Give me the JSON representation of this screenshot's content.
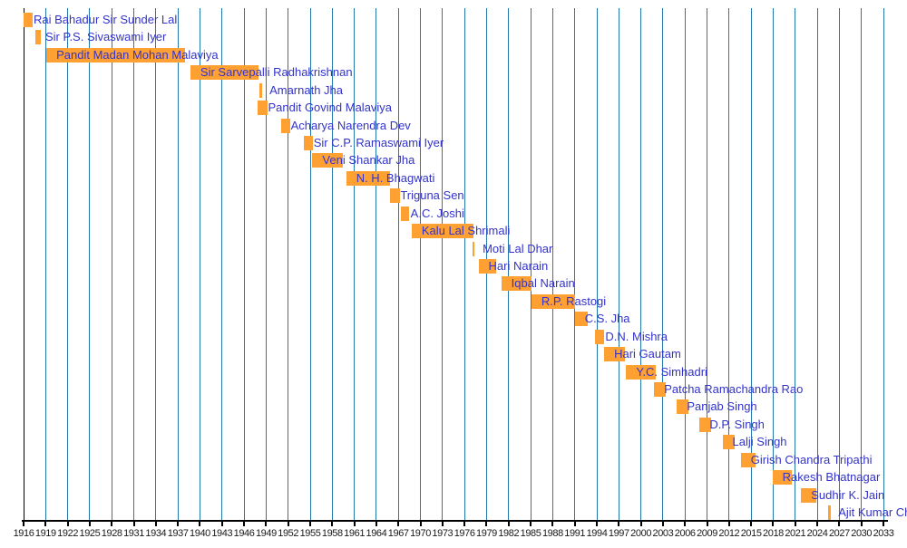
{
  "chart_data": {
    "type": "bar",
    "variant": "timeline-gantt",
    "title": "",
    "xlabel": "",
    "ylabel": "",
    "x_axis": {
      "min_year": 1916,
      "max_year": 2033,
      "tick_step_years": 3,
      "tick_labels": [
        "1916",
        "1919",
        "1922",
        "1925",
        "1928",
        "1931",
        "1934",
        "1937",
        "1940",
        "1943",
        "1946",
        "1949",
        "1952",
        "1955",
        "1958",
        "1961",
        "1964",
        "1967",
        "1970",
        "1973",
        "1976",
        "1979",
        "1982",
        "1985",
        "1988",
        "1991",
        "1994",
        "1997",
        "2000",
        "2003",
        "2006",
        "2009",
        "2012",
        "2015",
        "2018",
        "2021",
        "2024",
        "2027",
        "2030",
        "2033"
      ]
    },
    "grid": "vertical-lines-every-tick",
    "legend": "none",
    "bars": [
      {
        "label": "Rai Bahadur Sir Sunder Lal",
        "start": 1916.0,
        "end": 1917.2
      },
      {
        "label": "Sir P.S. Sivaswami Iyer",
        "start": 1917.6,
        "end": 1918.4
      },
      {
        "label": "Pandit Madan Mohan Malaviya",
        "start": 1919.1,
        "end": 1938.0
      },
      {
        "label": "Sir Sarvepalli Radhakrishnan",
        "start": 1938.7,
        "end": 1948.0
      },
      {
        "label": "Amarnath Jha",
        "start": 1948.1,
        "end": 1948.4
      },
      {
        "label": "Pandit Govind Malaviya",
        "start": 1947.9,
        "end": 1949.2
      },
      {
        "label": "Acharya Narendra Dev",
        "start": 1951.0,
        "end": 1952.3
      },
      {
        "label": "Sir C.P. Ramaswami Iyer",
        "start": 1954.1,
        "end": 1955.4
      },
      {
        "label": "Veni Shankar Jha",
        "start": 1955.3,
        "end": 1959.4
      },
      {
        "label": "N. H. Bhagwati",
        "start": 1959.9,
        "end": 1965.9
      },
      {
        "label": "Triguna Sen",
        "start": 1965.9,
        "end": 1967.2
      },
      {
        "label": "A.C. Joshi",
        "start": 1967.3,
        "end": 1968.5
      },
      {
        "label": "Kalu Lal Shrimali",
        "start": 1968.8,
        "end": 1977.2
      },
      {
        "label": "Moti Lal Dhar",
        "start": 1977.1,
        "end": 1977.4
      },
      {
        "label": "Hari Narain",
        "start": 1977.9,
        "end": 1980.3
      },
      {
        "label": "Iqbal Narain",
        "start": 1981.0,
        "end": 1985.1
      },
      {
        "label": "R.P. Rastogi",
        "start": 1985.1,
        "end": 1991.0
      },
      {
        "label": "C.S. Jha",
        "start": 1991.0,
        "end": 1992.8
      },
      {
        "label": "D.N. Mishra",
        "start": 1993.8,
        "end": 1995.0
      },
      {
        "label": "Hari Gautam",
        "start": 1995.0,
        "end": 1997.8
      },
      {
        "label": "Y.C. Simhadri",
        "start": 1998.0,
        "end": 2002.0
      },
      {
        "label": "Patcha Ramachandra Rao",
        "start": 2001.8,
        "end": 2003.4
      },
      {
        "label": "Panjab Singh",
        "start": 2004.9,
        "end": 2006.5
      },
      {
        "label": "D.P. Singh",
        "start": 2008.0,
        "end": 2009.5
      },
      {
        "label": "Lalji Singh",
        "start": 2011.1,
        "end": 2012.8
      },
      {
        "label": "Girish Chandra Tripathi",
        "start": 2013.6,
        "end": 2015.6
      },
      {
        "label": "Rakesh Bhatnagar",
        "start": 2017.9,
        "end": 2020.5
      },
      {
        "label": "Sudhir K. Jain",
        "start": 2021.8,
        "end": 2023.9
      },
      {
        "label": "Ajit Kumar Ch",
        "start": 2025.5,
        "end": 2025.8
      }
    ],
    "colors": {
      "bar_fill": "#ffa033",
      "bar_label_text": "#3333cc",
      "gridline": "#2579ad",
      "first_gridline": "#000000",
      "axis_line": "#000000",
      "tick_label_text": "#1a1a1a",
      "background": "#ffffff"
    }
  }
}
